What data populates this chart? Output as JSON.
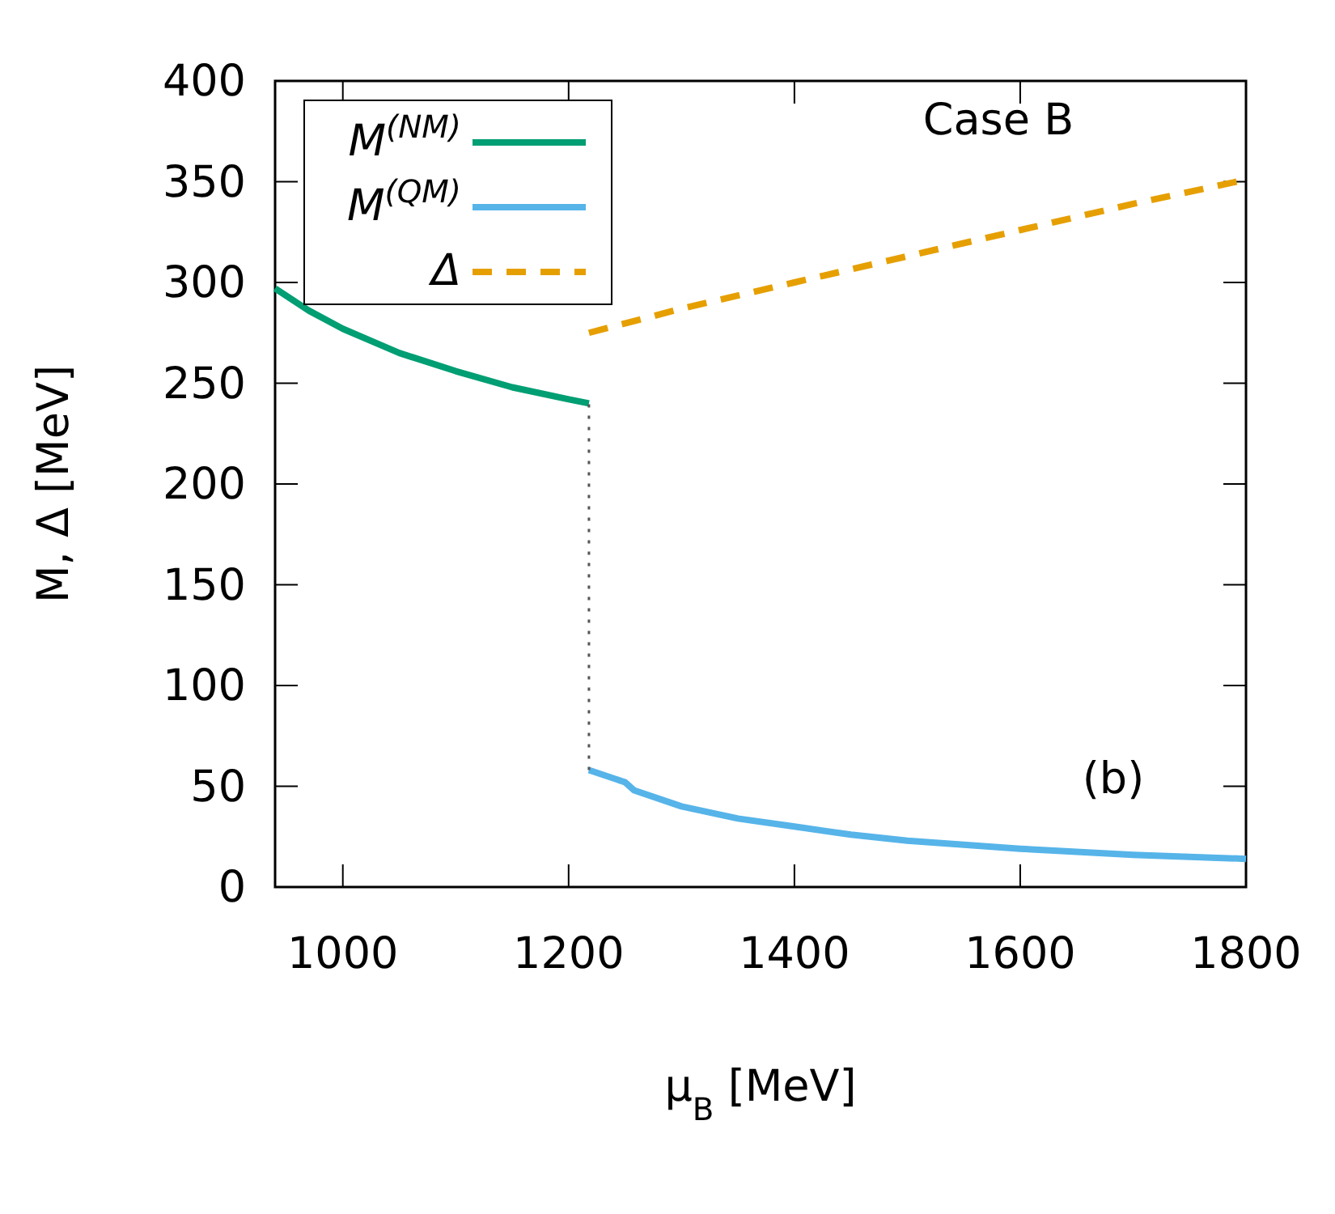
{
  "chart_data": {
    "type": "line",
    "xlabel": "μ$_{B}$ [MeV]",
    "ylabel": "M, Δ [MeV]",
    "annotations": [
      "Case B",
      "(b)"
    ],
    "xlim": [
      940,
      1800
    ],
    "xticks": [
      1000,
      1200,
      1400,
      1600,
      1800
    ],
    "ylim": [
      0,
      400
    ],
    "yticks": [
      0,
      50,
      100,
      150,
      200,
      250,
      300,
      350,
      400
    ],
    "grid": false,
    "legend": "top left",
    "series": [
      {
        "name": "M$^{(NM)}$",
        "color": "#009e73",
        "x": [
          940,
          970,
          1000,
          1050,
          1100,
          1150,
          1200,
          1218
        ],
        "values": [
          297,
          286,
          277,
          265,
          256,
          248,
          242,
          240
        ]
      },
      {
        "name": "M$^{(QM)}$",
        "color": "#56b4e9",
        "x": [
          1218,
          1250,
          1258,
          1300,
          1350,
          1400,
          1450,
          1500,
          1600,
          1700,
          1800
        ],
        "values": [
          58,
          52,
          48,
          40,
          34,
          30,
          26,
          23,
          19,
          16,
          14
        ]
      },
      {
        "name": "Δ",
        "color": "#e69f00",
        "line_style": "dashed",
        "x": [
          1218,
          1300,
          1400,
          1500,
          1600,
          1700,
          1800
        ],
        "values": [
          275,
          287,
          300,
          313,
          326,
          339,
          351
        ]
      },
      {
        "color": "#555555",
        "line_style": "dotted",
        "x": [
          1218,
          1218
        ],
        "values": [
          58,
          240
        ]
      }
    ]
  }
}
